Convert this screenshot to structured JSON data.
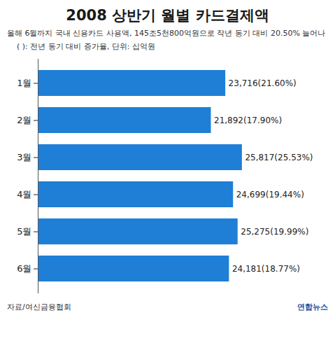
{
  "chart_data": {
    "type": "bar",
    "orientation": "horizontal",
    "title": "2008 상반기 월별 카드결제액",
    "subtitle": "올해 6월까지 국내 신용카드 사용액, 145조5천800억원으로 작년 동기 대비 20.50% 늘어나",
    "note": "( ): 전년 동기 대비 증가율, 단위: 십억원",
    "source": "자료/여신금융협회",
    "credit": "연합뉴스",
    "categories": [
      "1월",
      "2월",
      "3월",
      "4월",
      "5월",
      "6월"
    ],
    "values": [
      23716,
      21892,
      25817,
      24699,
      25275,
      24181
    ],
    "value_labels": [
      "23,716(21.60%)",
      "21,892(17.90%)",
      "25,817(25.53%)",
      "24,699(19.44%)",
      "25,275(19.99%)",
      "24,181(18.77%)"
    ],
    "color": "#1f7fd6",
    "xlim": [
      0,
      36000
    ],
    "data_labels": true,
    "tick_labels": "y",
    "grid": false
  }
}
